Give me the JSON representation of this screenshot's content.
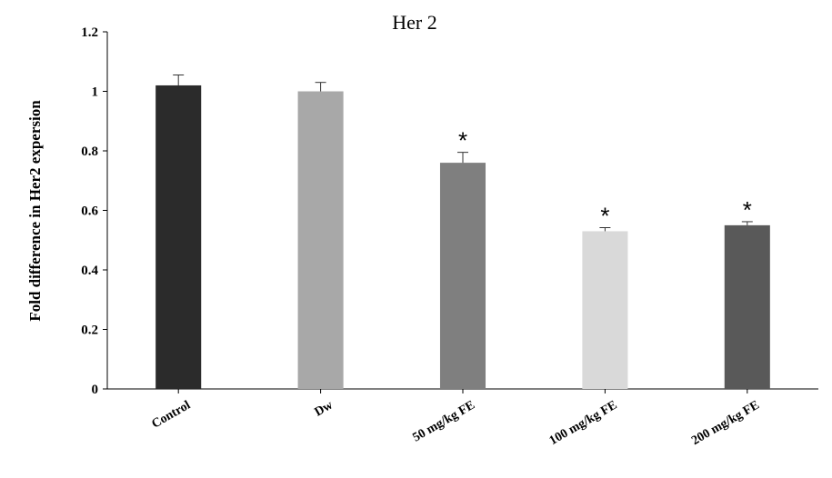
{
  "chart_data": {
    "type": "bar",
    "title": "Her 2",
    "ylabel": "Fold difference in Her2 expersion",
    "xlabel": "",
    "categories": [
      "Control",
      "Dw",
      "50 mg/kg FE",
      "100 mg/kg FE",
      "200 mg/kg FE"
    ],
    "values": [
      1.02,
      1.0,
      0.76,
      0.53,
      0.55
    ],
    "errors": [
      0.035,
      0.03,
      0.035,
      0.012,
      0.012
    ],
    "significance": [
      "",
      "",
      "*",
      "*",
      "*"
    ],
    "colors": [
      "#2b2b2b",
      "#a8a8a8",
      "#7f7f7f",
      "#d9d9d9",
      "#595959"
    ],
    "ylim": [
      0,
      1.2
    ],
    "yticks": [
      "0",
      "0.2",
      "0.4",
      "0.6",
      "0.8",
      "1",
      "1.2"
    ],
    "ytick_values": [
      0,
      0.2,
      0.4,
      0.6,
      0.8,
      1.0,
      1.2
    ],
    "grid": false,
    "legend": "none"
  }
}
